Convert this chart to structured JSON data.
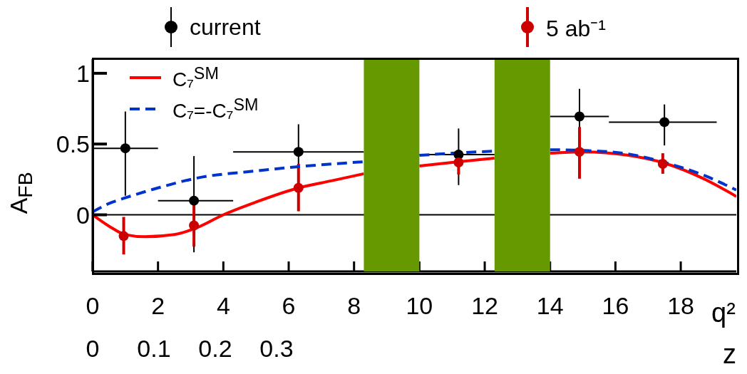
{
  "chart_data": {
    "type": "scatter",
    "xlabel": "q²",
    "x2label": "z",
    "ylabel": "A$_{FB}$",
    "xlim": [
      0,
      19.7
    ],
    "xticks": [
      0,
      2,
      4,
      6,
      8,
      10,
      12,
      14,
      16,
      18
    ],
    "x2lim": [
      0,
      1.05
    ],
    "x2ticks": [
      0,
      0.1,
      0.2,
      0.3
    ],
    "ylim": [
      -0.4,
      1.1
    ],
    "yticks": [
      0,
      0.5,
      1
    ],
    "legend": "top",
    "marker": "circle",
    "series": [
      {
        "name": "current",
        "color": "#000000",
        "x": [
          1,
          3.1,
          6.3,
          11.2,
          14.9,
          17.5
        ],
        "values": [
          0.47,
          0.1,
          0.445,
          0.425,
          0.695,
          0.655
        ],
        "errors": [
          [
            0.135,
            0.73
          ],
          [
            -0.265,
            0.415
          ],
          [
            0.25,
            0.64
          ],
          [
            0.21,
            0.61
          ],
          [
            0.5,
            0.89
          ],
          [
            0.49,
            0.78
          ]
        ],
        "xerrors": [
          [
            0,
            2
          ],
          [
            2,
            4.3
          ],
          [
            4.3,
            8.3
          ],
          [
            10,
            12.3
          ],
          [
            14,
            15.8
          ],
          [
            15.8,
            19.1
          ]
        ]
      },
      {
        "name": "5 ab⁻¹",
        "color": "#cc0000",
        "x": [
          0.95,
          3.1,
          6.3,
          11.2,
          14.9,
          17.45
        ],
        "values": [
          -0.15,
          -0.075,
          0.19,
          0.37,
          0.445,
          0.36
        ],
        "errors": [
          [
            -0.28,
            -0.015
          ],
          [
            -0.225,
            0.08
          ],
          [
            0.025,
            0.36
          ],
          [
            0.285,
            0.45
          ],
          [
            0.255,
            0.62
          ],
          [
            0.29,
            0.435
          ]
        ]
      },
      {
        "name": "C₇$^{SM}$",
        "type": "line",
        "color": "#ff0000",
        "line_style": "solid",
        "marker": "none",
        "x": [
          0,
          0.5,
          1,
          1.6,
          2.5,
          3.2,
          4,
          5,
          6.3,
          7.3,
          8.3,
          9.1,
          10,
          11,
          12.3,
          13.1,
          14,
          15,
          16.4,
          17.5,
          18.7,
          19.7
        ],
        "values": [
          0,
          -0.08,
          -0.14,
          -0.155,
          -0.14,
          -0.09,
          0,
          0.09,
          0.19,
          0.24,
          0.29,
          null,
          0.345,
          0.37,
          0.4,
          null,
          0.435,
          0.445,
          0.42,
          0.365,
          0.255,
          0.13
        ]
      },
      {
        "name": "C₇=-C₇$^{SM}$",
        "type": "line",
        "color": "#0033cc",
        "line_style": "dashed",
        "marker": "none",
        "x": [
          0,
          0.5,
          1,
          2,
          3.2,
          5,
          6.3,
          8.3,
          9.1,
          10,
          11,
          12.3,
          13.1,
          14,
          15,
          16.4,
          17.5,
          18.7,
          19.7
        ],
        "values": [
          0.02,
          0.08,
          0.12,
          0.19,
          0.26,
          0.31,
          0.34,
          0.375,
          null,
          0.42,
          0.435,
          0.45,
          null,
          0.46,
          0.455,
          0.43,
          0.37,
          0.28,
          0.175
        ]
      }
    ],
    "ref_lines": [
      {
        "axis": "y",
        "value": 0,
        "color": "#000000"
      }
    ],
    "bands": [
      {
        "axis": "x",
        "from": 8.3,
        "to": 10,
        "color": "#669900"
      },
      {
        "axis": "x",
        "from": 12.3,
        "to": 14,
        "color": "#669900"
      }
    ]
  }
}
